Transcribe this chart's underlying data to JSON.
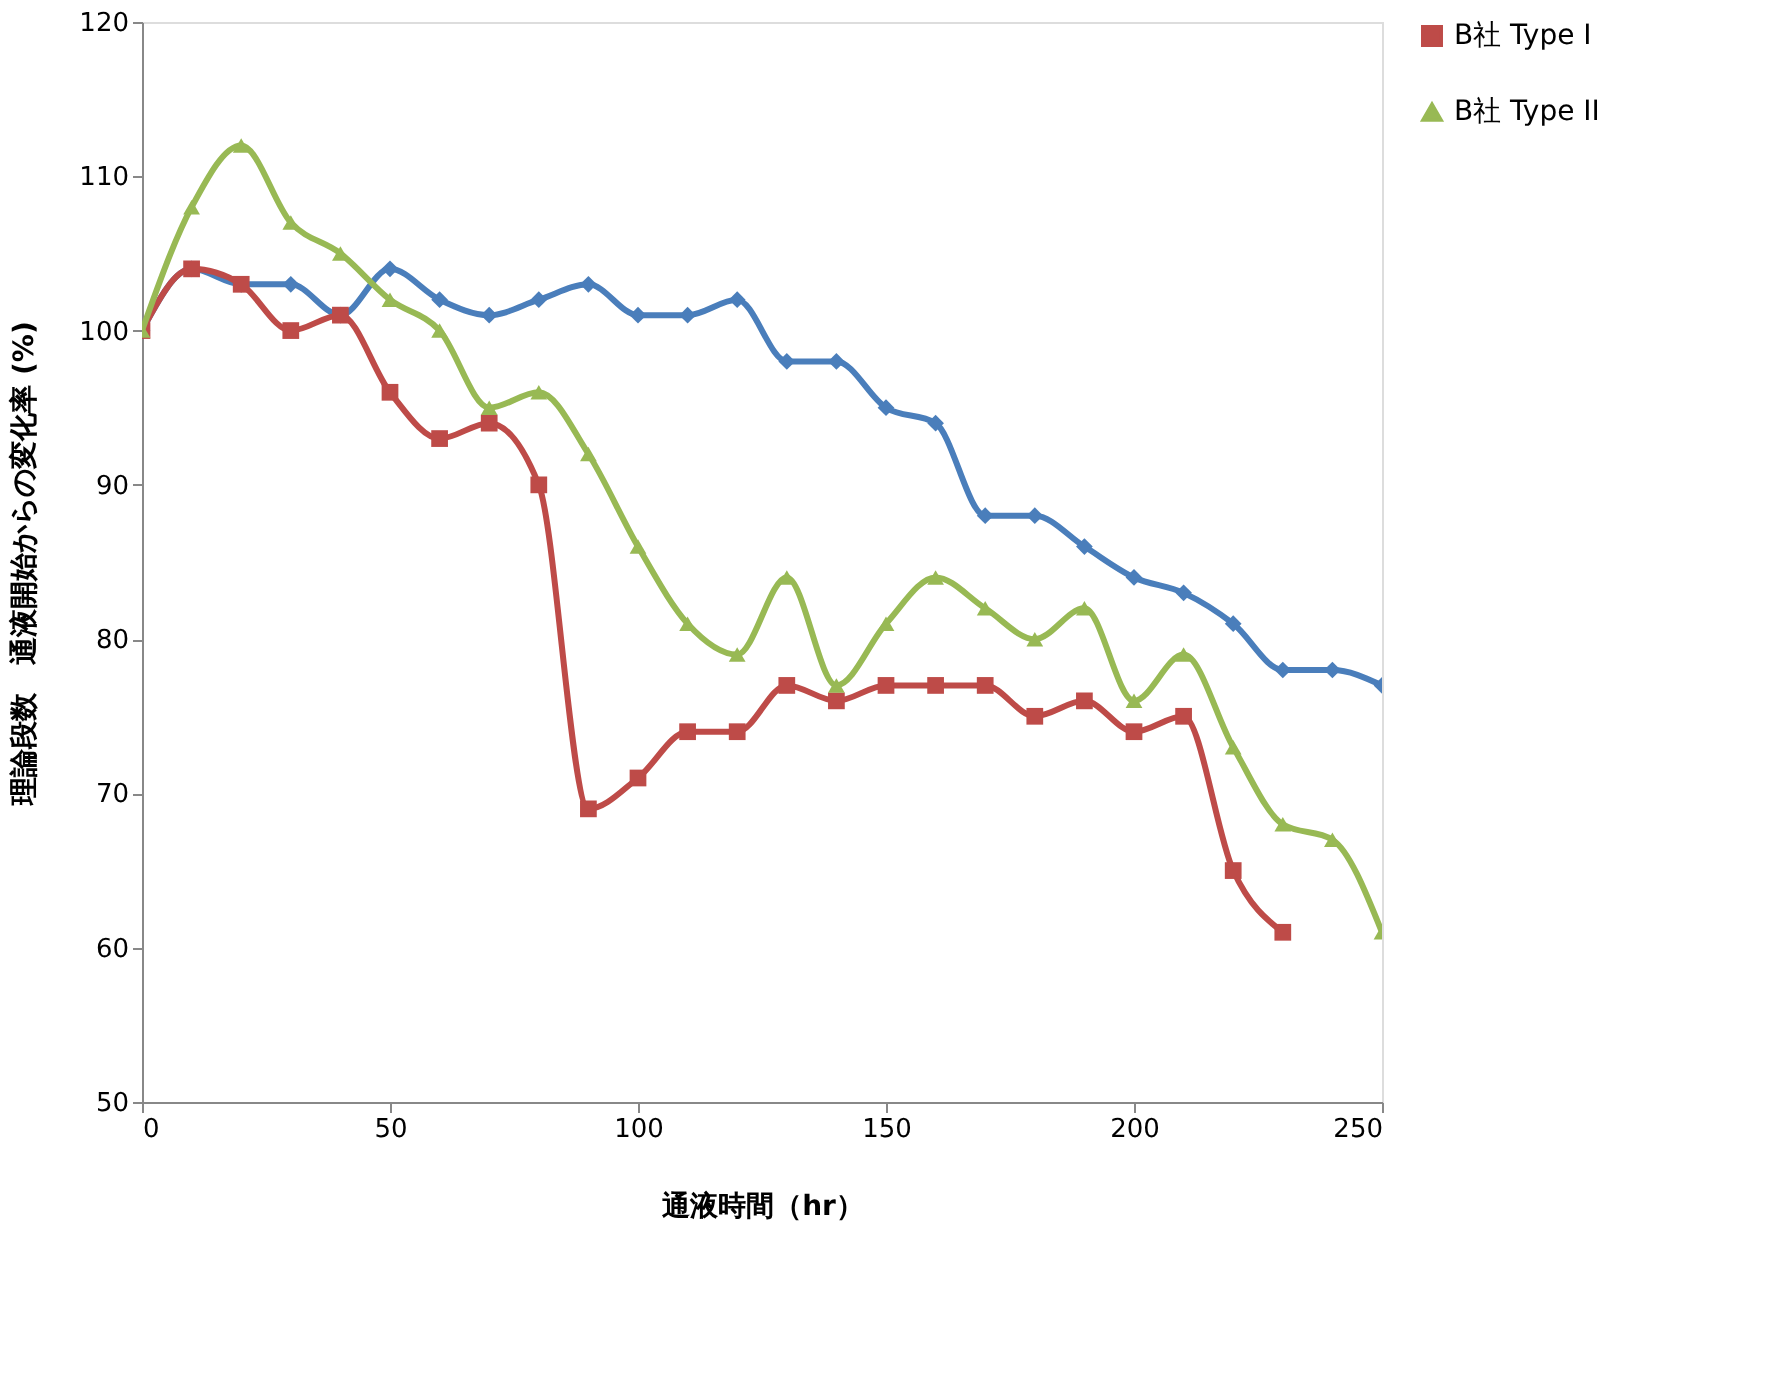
{
  "chart_data": {
    "type": "line",
    "xlabel": "通液時間（hr）",
    "ylabel": "理論段数　通液開始からの変化率 (%)",
    "x": [
      0,
      10,
      20,
      30,
      40,
      50,
      60,
      70,
      80,
      90,
      100,
      110,
      120,
      130,
      140,
      150,
      160,
      170,
      180,
      190,
      200,
      210,
      220,
      230,
      240,
      250
    ],
    "series": [
      {
        "color": "#4a7ebb",
        "marker": "diamond",
        "values": [
          100,
          104,
          103,
          103,
          101,
          104,
          102,
          101,
          102,
          103,
          101,
          101,
          102,
          98,
          98,
          95,
          94,
          88,
          88,
          86,
          84,
          83,
          81,
          78,
          78,
          77
        ]
      },
      {
        "name": "B社 Type I",
        "color": "#be4b48",
        "marker": "square",
        "values": [
          100,
          104,
          103,
          100,
          101,
          96,
          93,
          94,
          90,
          69,
          71,
          74,
          74,
          77,
          76,
          77,
          77,
          77,
          75,
          76,
          74,
          75,
          65,
          61,
          null,
          null
        ]
      },
      {
        "name": "B社 Type II",
        "color": "#98b954",
        "marker": "triangle",
        "values": [
          100,
          108,
          112,
          107,
          105,
          102,
          100,
          95,
          96,
          92,
          86,
          81,
          79,
          84,
          77,
          81,
          84,
          82,
          80,
          82,
          76,
          79,
          73,
          68,
          67,
          61
        ]
      }
    ],
    "xlim": [
      0,
      250
    ],
    "xticks": [
      0,
      50,
      100,
      150,
      200,
      250
    ],
    "ylim": [
      50,
      120
    ],
    "yticks": [
      50,
      60,
      70,
      80,
      90,
      100,
      110,
      120
    ],
    "grid": false,
    "legend": "right",
    "line_style": "solid"
  }
}
